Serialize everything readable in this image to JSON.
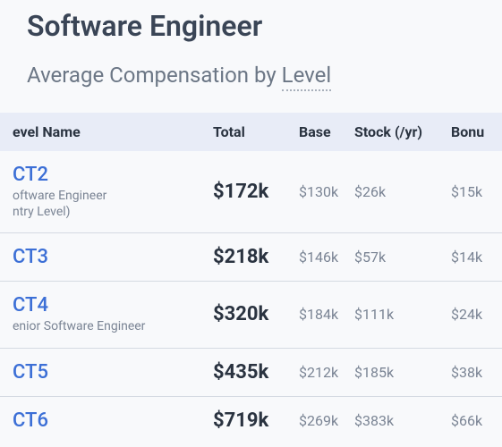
{
  "page_title": "Software Engineer",
  "section_title_prefix": "Average Compensation by ",
  "section_title_level_word": "Level",
  "table": {
    "columns": {
      "level": "evel Name",
      "total": "Total",
      "base": "Base",
      "stock": "Stock (/yr)",
      "bonus": "Bonu"
    },
    "rows": [
      {
        "code": "CT2",
        "subtitle_line1": "oftware Engineer",
        "subtitle_line2": "ntry Level)",
        "total": "$172k",
        "base": "$130k",
        "stock": "$26k",
        "bonus": "$15k"
      },
      {
        "code": "CT3",
        "subtitle_line1": "",
        "subtitle_line2": "",
        "total": "$218k",
        "base": "$146k",
        "stock": "$57k",
        "bonus": "$14k"
      },
      {
        "code": "CT4",
        "subtitle_line1": "enior Software Engineer",
        "subtitle_line2": "",
        "total": "$320k",
        "base": "$184k",
        "stock": "$111k",
        "bonus": "$24k"
      },
      {
        "code": "CT5",
        "subtitle_line1": "",
        "subtitle_line2": "",
        "total": "$435k",
        "base": "$212k",
        "stock": "$185k",
        "bonus": "$38k"
      },
      {
        "code": "CT6",
        "subtitle_line1": "",
        "subtitle_line2": "",
        "total": "$719k",
        "base": "$269k",
        "stock": "$383k",
        "bonus": "$66k"
      }
    ]
  },
  "colors": {
    "background": "#f8f9fb",
    "title_text": "#3a4556",
    "subtitle_text": "#6b7685",
    "header_bg": "#e8ecf7",
    "header_text": "#2a3340",
    "level_link": "#3c6fd6",
    "muted_text": "#7a8494",
    "row_border": "#d5dae2"
  }
}
